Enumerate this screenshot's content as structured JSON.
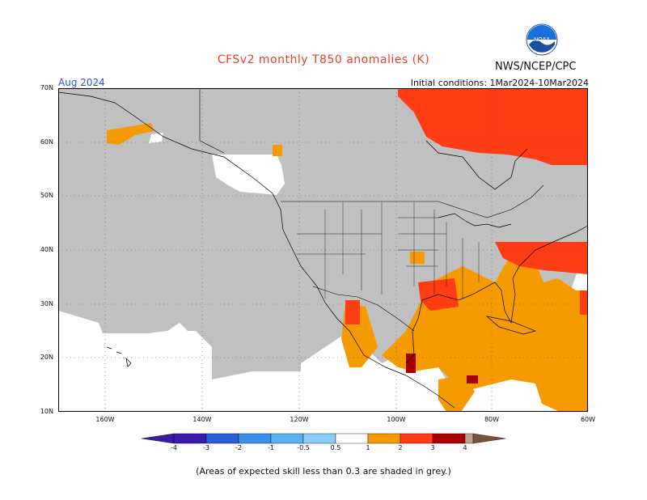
{
  "header": {
    "title": "CFSv2 monthly T850 anomalies (K)",
    "agency": "NWS/NCEP/CPC",
    "logo_text": "NOAA",
    "month": "Aug 2024",
    "initial_conditions": "Initial conditions: 1Mar2024-10Mar2024"
  },
  "axes": {
    "lat_labels": [
      "70N",
      "60N",
      "50N",
      "40N",
      "30N",
      "20N",
      "10N"
    ],
    "lon_labels": [
      "160W",
      "140W",
      "120W",
      "100W",
      "80W",
      "60W"
    ]
  },
  "colorbar": {
    "labels": [
      "-4",
      "-3",
      "-2",
      "-1",
      "-0.5",
      "0.5",
      "1",
      "2",
      "3",
      "4"
    ],
    "colors": [
      "#3a1aa8",
      "#2b5ed8",
      "#3a8fe8",
      "#5ab0f0",
      "#8cccf8",
      "#ffffff",
      "#f59a00",
      "#ff3c14",
      "#a80000",
      "#c0a090",
      "#7a5040"
    ]
  },
  "colors": {
    "grey_mask": "#c0c0c0",
    "ocean": "#ffffff",
    "positive_1": "#f59a00",
    "positive_2": "#ff3c14",
    "positive_3": "#a80000",
    "positive_4": "#c0a090"
  },
  "footnote": "(Areas of expected skill less than 0.3 are shaded in grey.)"
}
